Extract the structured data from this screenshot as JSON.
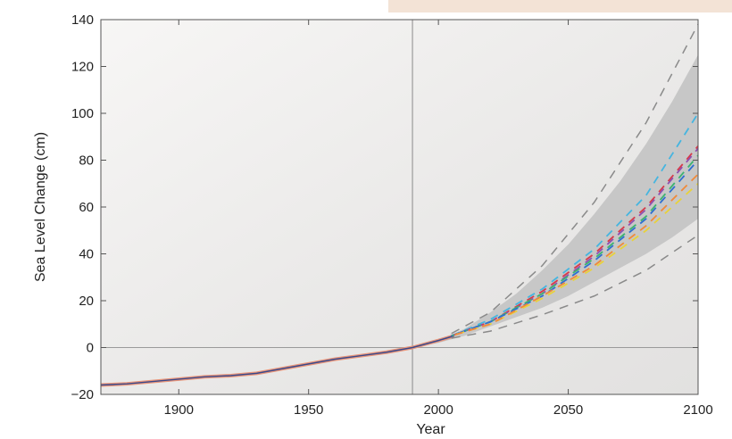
{
  "chart_data": {
    "type": "line",
    "title": "",
    "xlabel": "Year",
    "ylabel": "Sea Level Change (cm)",
    "xlim": [
      1870,
      2100
    ],
    "ylim": [
      -20,
      140
    ],
    "x_ticks": [
      1900,
      1950,
      2000,
      2050,
      2100
    ],
    "y_ticks": [
      -20,
      0,
      20,
      40,
      60,
      80,
      100,
      120,
      140
    ],
    "reference_lines": {
      "vertical_x": 1990,
      "horizontal_y": 0
    },
    "grid": false,
    "legend": "none",
    "observed": {
      "x": [
        1870,
        1880,
        1890,
        1900,
        1910,
        1920,
        1930,
        1940,
        1950,
        1960,
        1970,
        1980,
        1990,
        2000,
        2006
      ],
      "y": [
        -16,
        -15.5,
        -14.5,
        -13.5,
        -12.5,
        -12,
        -11,
        -9,
        -7,
        -5,
        -3.5,
        -2,
        0,
        3,
        5
      ],
      "color": "#e8957a",
      "smoothed_color": "#3b4a8c"
    },
    "projection_envelope": {
      "x": [
        1990,
        2000,
        2010,
        2020,
        2030,
        2040,
        2050,
        2060,
        2070,
        2080,
        2090,
        2100
      ],
      "lower": [
        0,
        2,
        5,
        9,
        13,
        17,
        22,
        28,
        34,
        40,
        47,
        55
      ],
      "upper": [
        0,
        3,
        8,
        15,
        23,
        33,
        44,
        57,
        71,
        87,
        105,
        125
      ],
      "color": "#c7c7c7"
    },
    "outer_bounds": {
      "x": [
        2005,
        2020,
        2040,
        2060,
        2080,
        2100
      ],
      "lower": [
        4,
        7,
        14,
        22,
        33,
        48
      ],
      "upper": [
        6,
        15,
        35,
        62,
        96,
        138
      ],
      "color": "#8a8a8a"
    },
    "series": [
      {
        "x": [
          2005,
          2020,
          2040,
          2060,
          2080,
          2100
        ],
        "y": [
          5,
          12,
          25,
          42,
          65,
          100
        ],
        "color": "#45b5e0"
      },
      {
        "x": [
          2005,
          2020,
          2040,
          2060,
          2080,
          2100
        ],
        "y": [
          5,
          11,
          24,
          40,
          60,
          86
        ],
        "color": "#d63a4a"
      },
      {
        "x": [
          2005,
          2020,
          2040,
          2060,
          2080,
          2100
        ],
        "y": [
          5,
          11,
          23,
          39,
          59,
          85
        ],
        "color": "#8e4fb0"
      },
      {
        "x": [
          2005,
          2020,
          2040,
          2060,
          2080,
          2100
        ],
        "y": [
          5,
          11,
          23,
          38,
          56,
          82
        ],
        "color": "#3cb371"
      },
      {
        "x": [
          2005,
          2020,
          2040,
          2060,
          2080,
          2100
        ],
        "y": [
          5,
          11,
          22,
          37,
          55,
          80
        ],
        "color": "#2e6fd0"
      },
      {
        "x": [
          2005,
          2020,
          2040,
          2060,
          2080,
          2100
        ],
        "y": [
          5,
          10,
          21,
          34,
          50,
          70
        ],
        "color": "#e8d23a"
      },
      {
        "x": [
          2005,
          2020,
          2040,
          2060,
          2080,
          2100
        ],
        "y": [
          5,
          10,
          22,
          35,
          52,
          74
        ],
        "color": "#f08a3a"
      }
    ]
  }
}
